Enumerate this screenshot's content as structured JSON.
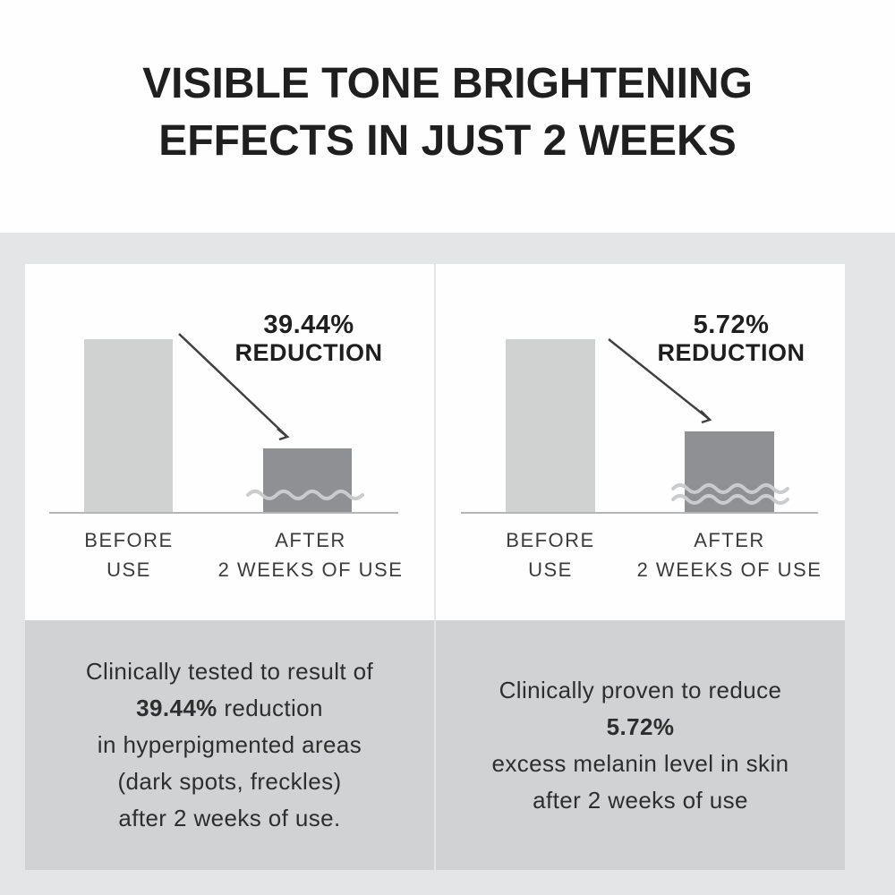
{
  "title": {
    "line1": "VISIBLE TONE BRIGHTENING",
    "line2": "EFFECTS IN JUST 2 WEEKS"
  },
  "chart_data": [
    {
      "type": "bar",
      "title": "39.44% REDUCTION",
      "categories": [
        "BEFORE USE",
        "AFTER 2 WEEKS OF USE"
      ],
      "values": [
        100,
        37
      ],
      "ylim": [
        0,
        100
      ],
      "grid": false,
      "legend": "none",
      "annotation": "39.44% REDUCTION",
      "note": "Relative bar heights as drawn; AFTER bar carries a single axis-break wave (not to scale)"
    },
    {
      "type": "bar",
      "title": "5.72% REDUCTION",
      "categories": [
        "BEFORE USE",
        "AFTER 2 WEEKS OF USE"
      ],
      "values": [
        100,
        47
      ],
      "ylim": [
        0,
        100
      ],
      "grid": false,
      "legend": "none",
      "annotation": "5.72% REDUCTION",
      "note": "Relative bar heights as drawn; AFTER bar carries a double axis-break wave (not to scale)"
    }
  ],
  "panels": [
    {
      "reduction_value": "39.44%",
      "reduction_word": "REDUCTION",
      "before_label": [
        "BEFORE",
        "USE"
      ],
      "after_label": [
        "AFTER",
        "2 WEEKS OF USE"
      ],
      "caption": {
        "line1": "Clinically tested to result of",
        "line2_bold": "39.44%",
        "line2_rest": " reduction",
        "line3": "in hyperpigmented areas",
        "line4": "(dark spots, freckles)",
        "line5": "after 2 weeks of use."
      }
    },
    {
      "reduction_value": "5.72%",
      "reduction_word": "REDUCTION",
      "before_label": [
        "BEFORE",
        "USE"
      ],
      "after_label": [
        "AFTER",
        "2 WEEKS OF USE"
      ],
      "caption": {
        "line1": "Clinically proven to reduce",
        "line2_bold": "5.72%",
        "line3": "excess melanin level in skin",
        "line4": "after 2 weeks of use"
      }
    }
  ],
  "colors": {
    "page_bg": "#fefefe",
    "section_bg": "#e4e5e6",
    "panel_bg": "#fefefe",
    "caption_bg": "#d1d2d3",
    "bar_before": "#d0d1d1",
    "bar_after": "#8e9093",
    "baseline": "#b4b6b7",
    "wave": "#c9cbcc",
    "arrow": "#404040",
    "title_text": "#1f1f1f",
    "label_text": "#3c3c3c",
    "caption_text": "#2e2e2e"
  }
}
